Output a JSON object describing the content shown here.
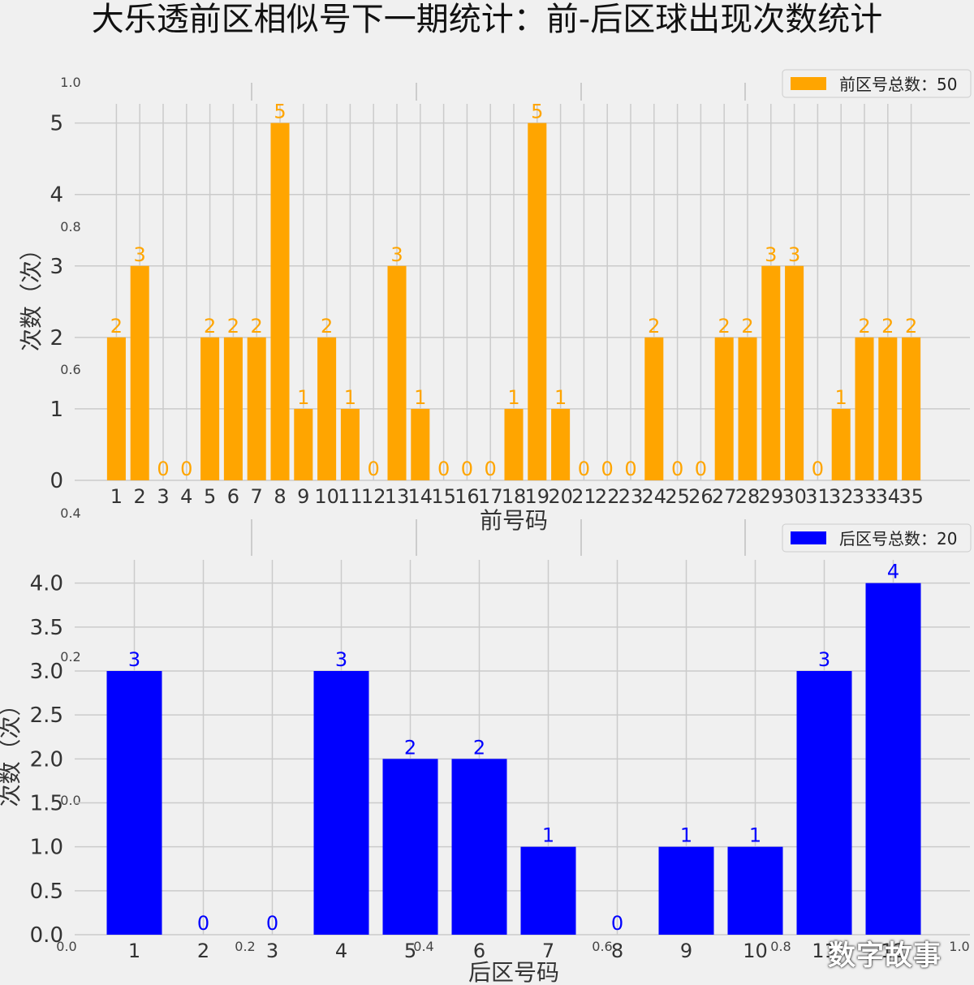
{
  "title": "大乐透前区相似号下一期统计：前-后区球出现次数统计",
  "chart_data": [
    {
      "type": "bar",
      "categories": [
        "1",
        "2",
        "3",
        "4",
        "5",
        "6",
        "7",
        "8",
        "9",
        "10",
        "11",
        "12",
        "13",
        "14",
        "15",
        "16",
        "17",
        "18",
        "19",
        "20",
        "21",
        "22",
        "23",
        "24",
        "25",
        "26",
        "27",
        "28",
        "29",
        "30",
        "31",
        "32",
        "33",
        "34",
        "35"
      ],
      "values": [
        2,
        3,
        0,
        0,
        2,
        2,
        2,
        5,
        1,
        2,
        1,
        0,
        3,
        1,
        0,
        0,
        0,
        1,
        5,
        1,
        0,
        0,
        0,
        2,
        0,
        0,
        2,
        2,
        3,
        3,
        0,
        1,
        2,
        2,
        2
      ],
      "xlabel": "前号码",
      "ylabel": "次数（次）",
      "ylim": [
        0,
        5.2
      ],
      "yticks": [
        "0",
        "1",
        "2",
        "3",
        "4",
        "5"
      ],
      "legend": "前区号总数：50",
      "legend_position": "top-right",
      "color": "#ffa500",
      "grid": true
    },
    {
      "type": "bar",
      "categories": [
        "1",
        "2",
        "3",
        "4",
        "5",
        "6",
        "7",
        "8",
        "9",
        "10",
        "11",
        "12"
      ],
      "values": [
        3,
        0,
        0,
        3,
        2,
        2,
        1,
        0,
        1,
        1,
        3,
        4
      ],
      "xlabel": "后区号码",
      "ylabel": "次数（次）",
      "ylim": [
        0,
        4.2
      ],
      "yticks": [
        "0.0",
        "0.5",
        "1.0",
        "1.5",
        "2.0",
        "2.5",
        "3.0",
        "3.5",
        "4.0"
      ],
      "legend": "后区号总数：20",
      "legend_position": "top-right",
      "color": "#0000ff",
      "grid": true
    }
  ],
  "ghost_axis": {
    "left_ticks": [
      "1.0",
      "0.8",
      "0.6",
      "0.4",
      "0.2",
      "0.0"
    ],
    "bottom_ticks": [
      "0.0",
      "0.2",
      "0.4",
      "0.6",
      "0.8",
      "1.0"
    ]
  },
  "watermark": "数字故事"
}
